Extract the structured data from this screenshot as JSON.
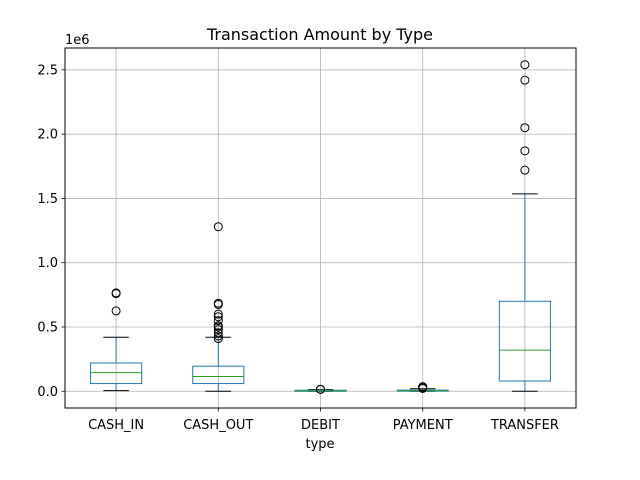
{
  "chart_data": {
    "type": "box",
    "title": "Transaction Amount by Type",
    "xlabel": "type",
    "ylabel": "",
    "y_offset_label": "1e6",
    "y_scale": 1000000,
    "ylim": [
      -0.13,
      2.67
    ],
    "y_ticks": [
      0.0,
      0.5,
      1.0,
      1.5,
      2.0,
      2.5
    ],
    "y_tick_labels": [
      "0.0",
      "0.5",
      "1.0",
      "1.5",
      "2.0",
      "2.5"
    ],
    "grid": true,
    "categories": [
      "CASH_IN",
      "CASH_OUT",
      "DEBIT",
      "PAYMENT",
      "TRANSFER"
    ],
    "boxes": [
      {
        "whisker_low": 0.005,
        "q1": 0.06,
        "median": 0.145,
        "q3": 0.22,
        "whisker_high": 0.42,
        "outliers": [
          0.625,
          0.76,
          0.765
        ]
      },
      {
        "whisker_low": 0.0,
        "q1": 0.06,
        "median": 0.115,
        "q3": 0.195,
        "whisker_high": 0.42,
        "outliers": [
          0.41,
          0.43,
          0.455,
          0.48,
          0.5,
          0.51,
          0.55,
          0.58,
          0.6,
          0.675,
          0.685,
          1.28
        ]
      },
      {
        "whisker_low": 0.0,
        "q1": 0.001,
        "median": 0.004,
        "q3": 0.008,
        "whisker_high": 0.013,
        "outliers": [
          0.014,
          0.016
        ]
      },
      {
        "whisker_low": 0.0,
        "q1": 0.002,
        "median": 0.005,
        "q3": 0.009,
        "whisker_high": 0.02,
        "outliers": [
          0.022,
          0.028,
          0.033,
          0.036
        ]
      },
      {
        "whisker_low": 0.0,
        "q1": 0.08,
        "median": 0.32,
        "q3": 0.7,
        "whisker_high": 1.535,
        "outliers": [
          1.72,
          1.87,
          2.05,
          2.42,
          2.54
        ]
      }
    ],
    "colors": {
      "box": "#1f77b4",
      "median": "#2ca02c",
      "whisker": "#000000",
      "flier": "#000000",
      "grid": "#b0b0b0"
    }
  }
}
